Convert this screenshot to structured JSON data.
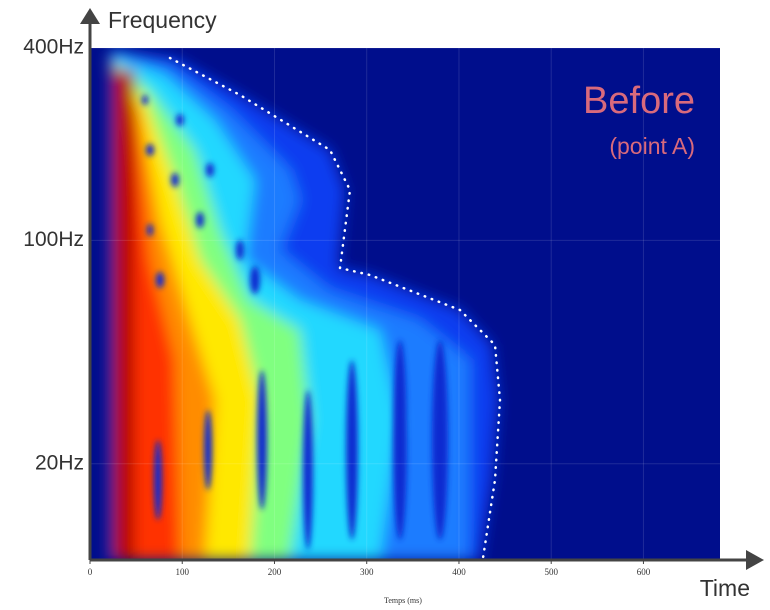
{
  "chart_data": {
    "type": "spectrogram",
    "ylabel": "Frequency",
    "xlabel_arrow": "Time",
    "xlabel": "Temps (ms)",
    "annotation": "Before",
    "annotation_sub": "(point A)",
    "xlim": [
      0,
      683
    ],
    "xticks": [
      0,
      100,
      200,
      300,
      400,
      500,
      600
    ],
    "ylim": [
      10,
      400
    ],
    "ylog": true,
    "yticks": [
      {
        "value": 20,
        "label": "20Hz"
      },
      {
        "value": 100,
        "label": "100Hz"
      },
      {
        "value": 400,
        "label": "400Hz"
      }
    ],
    "grid": true,
    "color": "#000e8c"
  }
}
